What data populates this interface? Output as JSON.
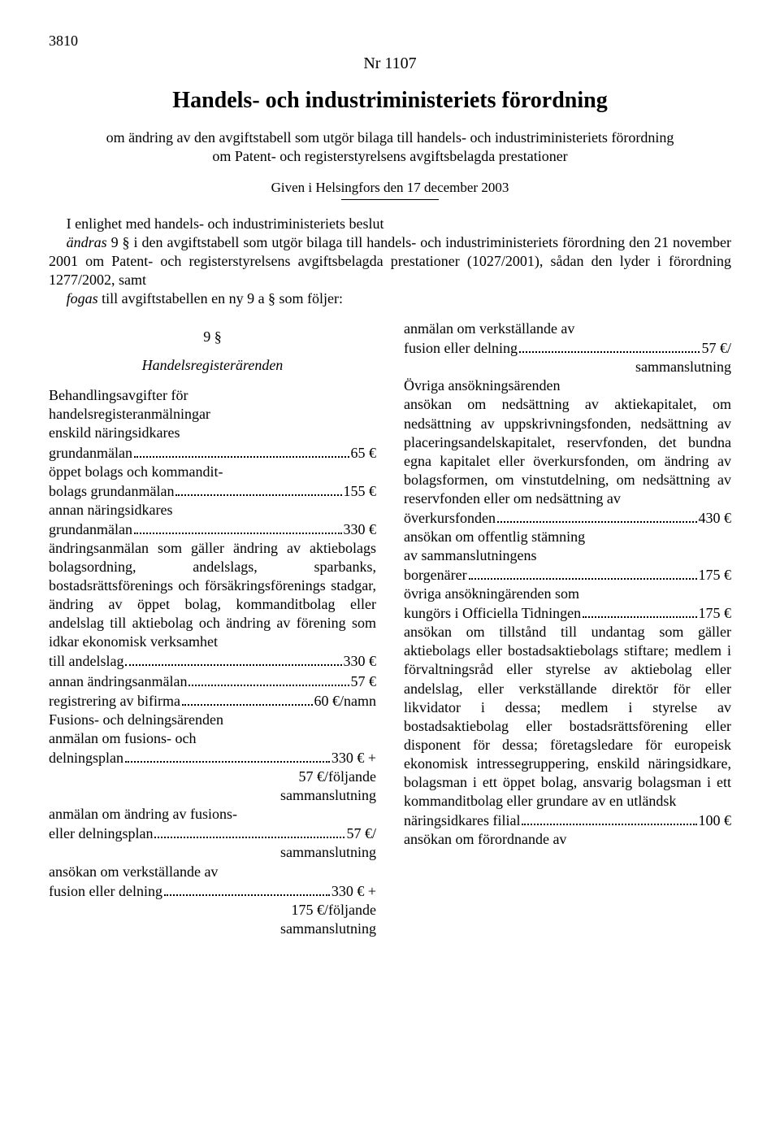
{
  "page_number": "3810",
  "nr": "Nr 1107",
  "title": "Handels- och industriministeriets förordning",
  "subtitle": "om ändring av den avgiftstabell som utgör bilaga till handels- och industriministeriets förordning om Patent- och registerstyrelsens avgiftsbelagda prestationer",
  "given": "Given i Helsingfors den 17 december 2003",
  "preamble_a": "I enlighet med handels- och industriministeriets beslut",
  "preamble_b_prefix": "ändras",
  "preamble_b": " 9 § i den avgiftstabell som utgör bilaga till handels- och industriministeriets förordning den 21 november 2001 om Patent- och registerstyrelsens avgiftsbelagda prestationer (1027/2001), sådan den lyder i förordning 1277/2002, samt",
  "preamble_c_prefix": "fogas",
  "preamble_c": " till avgiftstabellen en ny 9 a § som följer:",
  "section_num": "9 §",
  "section_head": "Handelsregisterärenden",
  "left": {
    "l1": "Behandlingsavgifter för",
    "l2": "handelsregisteranmälningar",
    "fee1_lab": "enskild näringsidkares grundanmälan",
    "fee1_val": "65 €",
    "fee2_lab": "öppet bolags och kommanditbolags grundanmälan",
    "fee2_val": "155 €",
    "fee3_lab": "annan näringsidkares grundanmälan",
    "fee3_val": "330 €",
    "p3": "ändringsanmälan som gäller ändring av aktiebolags bolagsordning, andelslags, sparbanks, bostadsrättsförenings och försäkringsförenings stadgar, ändring av öppet bolag, kommanditbolag eller andelslag till aktiebolag och ändring av förening som idkar ekonomisk verksamhet",
    "fee4_lab": "till andelslag",
    "fee4_val": "330 €",
    "fee5_lab": "annan ändringsanmälan",
    "fee5_val": "57 €",
    "fee6_lab": "registrering av bifirma",
    "fee6_val": "60 €/namn",
    "l7": "Fusions- och delningsärenden",
    "fee7_lab": "anmälan om fusions- och delningsplan",
    "fee7_val": "330 € +",
    "tail7a": "57 €/följande",
    "tail7b": "sammanslutning",
    "fee8_lab": "anmälan om ändring av fusions- eller delningsplan",
    "fee8_val": "57 €/",
    "tail8": "sammanslutning",
    "fee9_lab": "ansökan om verkställande av fusion eller delning",
    "fee9_val": "330 € +",
    "tail9a": "175 €/följande",
    "tail9b": "sammanslutning"
  },
  "right": {
    "fee1_lab_a": "anmälan om verkställande av",
    "fee1_lab_b": "fusion eller delning",
    "fee1_val": "57 €/",
    "tail1": "sammanslutning",
    "l2": "Övriga ansökningsärenden",
    "p3": "ansökan om nedsättning av aktiekapitalet, om nedsättning av uppskrivningsfonden, nedsättning av placeringsandelskapitalet, reservfonden, det bundna egna kapitalet eller överkursfonden, om ändring av bolagsformen, om vinstutdelning, om nedsättning av reservfonden eller om nedsättning av",
    "fee2_lab": "överkursfonden",
    "fee2_val": "430 €",
    "p4a": "ansökan om offentlig stämning",
    "p4b": "av sammanslutningens",
    "fee3_lab": "borgenärer",
    "fee3_val": "175 €",
    "p5": "övriga ansökningärenden som",
    "fee4_lab": "kungörs i Officiella Tidningen",
    "fee4_val": "175 €",
    "p6": "ansökan om tillstånd till undantag som gäller aktiebolags eller bostadsaktiebolags stiftare; medlem i förvaltningsråd eller styrelse av aktiebolag eller andelslag, eller verkställande direktör för eller likvidator i dessa; medlem i styrelse av bostadsaktiebolag eller bostadsrättsförening eller disponent för dessa; företagsledare för europeisk ekonomisk intressegruppering, enskild näringsidkare, bolagsman i ett öppet bolag, ansvarig bolagsman i ett kommanditbolag eller grundare av en utländsk",
    "fee5_lab": "näringsidkares filial",
    "fee5_val": "100 €",
    "l7": "ansökan om förordnande av"
  }
}
